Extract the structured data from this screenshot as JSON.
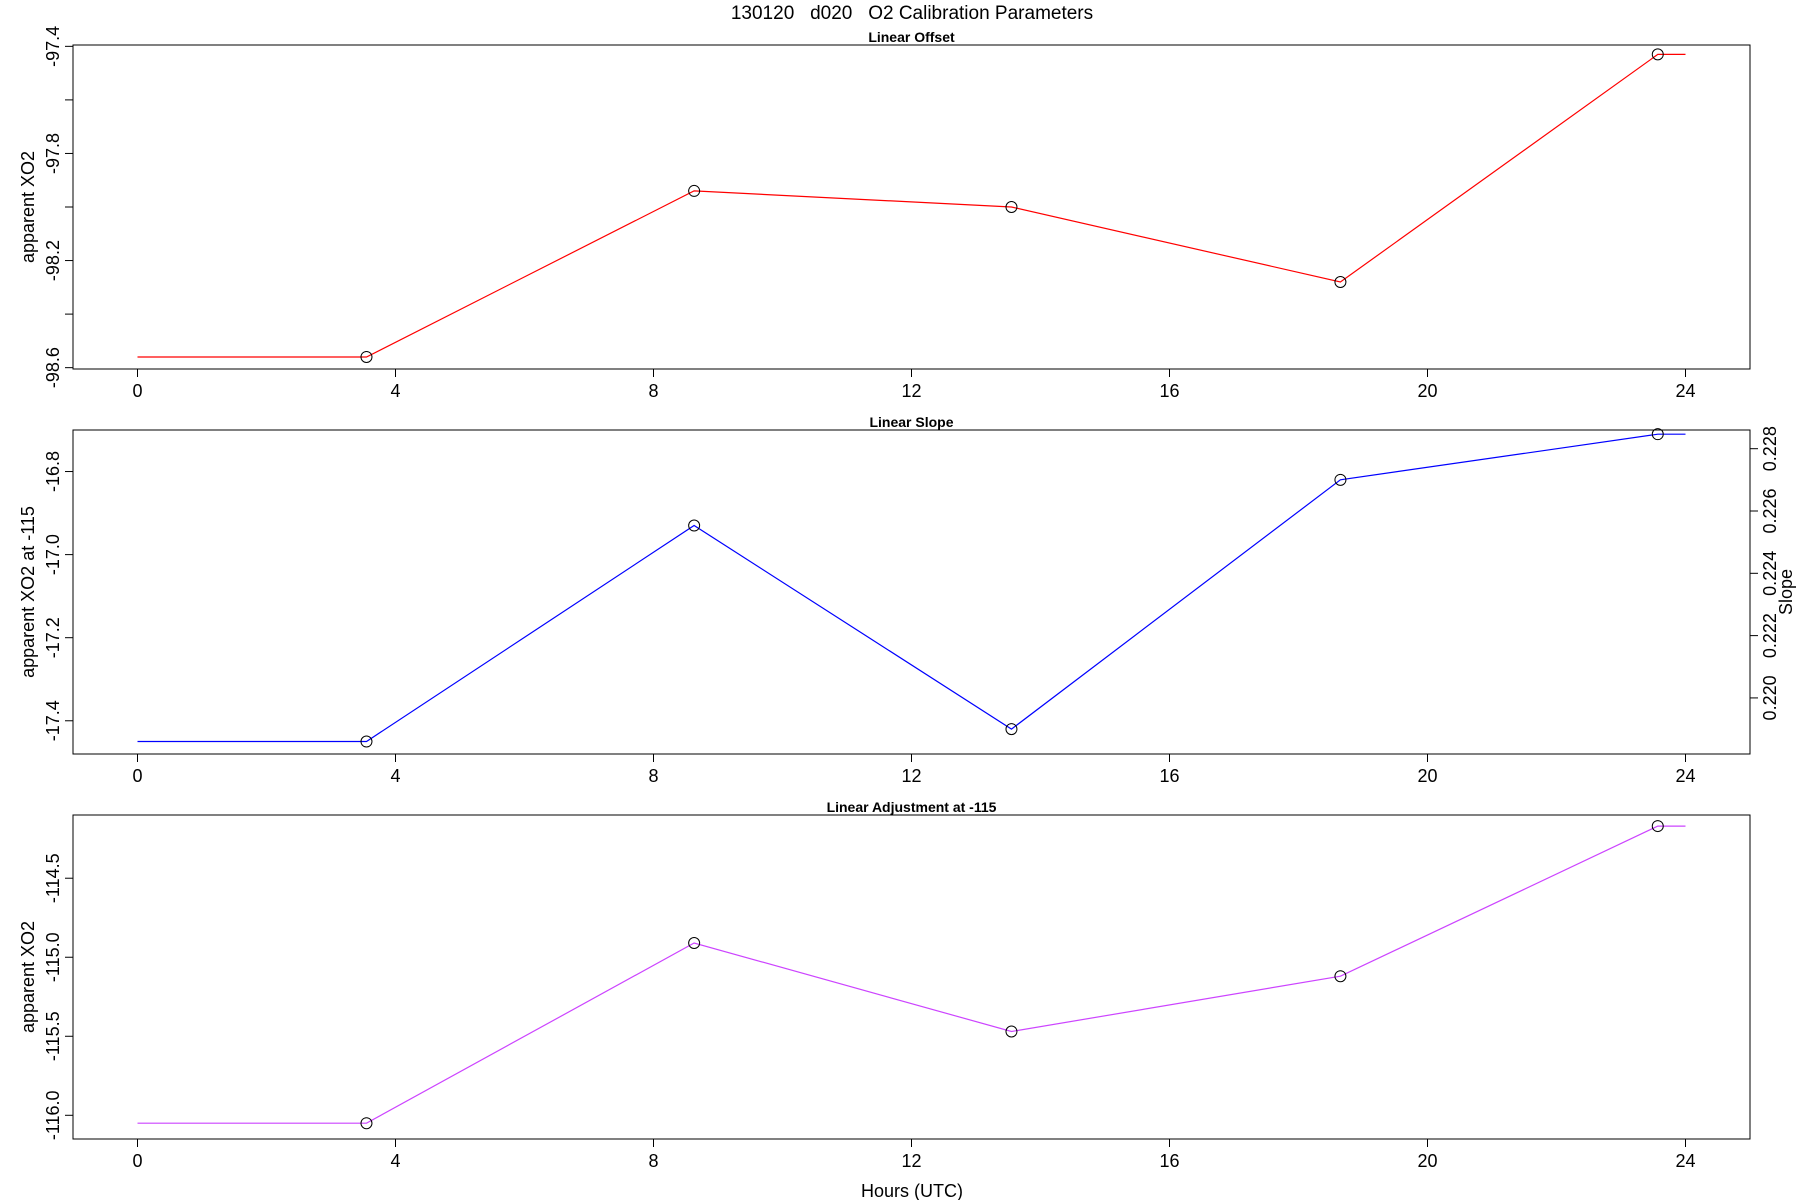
{
  "figure": {
    "title": "130120   d020   O2 Calibration Parameters",
    "xlabel": "Hours (UTC)"
  },
  "chart_data": [
    {
      "type": "line",
      "title": "Linear Offset",
      "xlabel": "",
      "ylabel": "apparent XO2",
      "xlim": [
        -1.0,
        25.0
      ],
      "ylim": [
        -98.605,
        -97.395
      ],
      "xticks": [
        "0",
        "4",
        "8",
        "12",
        "16",
        "20",
        "24"
      ],
      "yticks": [
        "-98.6",
        "-98.2",
        "-97.8",
        "-97.4"
      ],
      "color": "#ff0000",
      "x": [
        0.0,
        3.55,
        8.63,
        13.55,
        18.65,
        23.57,
        24.0
      ],
      "y": [
        -98.56,
        -98.56,
        -97.94,
        -98.0,
        -98.28,
        -97.43,
        -97.43
      ],
      "markers": [
        false,
        true,
        true,
        true,
        true,
        true,
        false
      ],
      "grid": false
    },
    {
      "type": "line",
      "title": "Linear Slope",
      "xlabel": "",
      "ylabel": "apparent XO2 at -115",
      "ylabel_right": "Slope",
      "xlim": [
        -1.0,
        25.0
      ],
      "ylim": [
        -17.48,
        -16.7
      ],
      "xticks": [
        "0",
        "4",
        "8",
        "12",
        "16",
        "20",
        "24"
      ],
      "yticks": [
        "-17.4",
        "-17.2",
        "-17.0",
        "-16.8"
      ],
      "y2ticks": [
        "0.220",
        "0.222",
        "0.224",
        "0.226",
        "0.228"
      ],
      "y2tick_values": [
        0.22,
        0.222,
        0.224,
        0.226,
        0.228
      ],
      "y2lim": [
        0.2182,
        0.2286
      ],
      "color": "#0000ff",
      "x": [
        0.0,
        3.55,
        8.63,
        13.55,
        18.65,
        23.57,
        24.0
      ],
      "y": [
        -17.45,
        -17.45,
        -16.93,
        -17.42,
        -16.82,
        -16.71,
        -16.71
      ],
      "markers": [
        false,
        true,
        true,
        true,
        true,
        true,
        false
      ],
      "grid": false
    },
    {
      "type": "line",
      "title": "Linear Adjustment at -115",
      "xlabel": "Hours (UTC)",
      "ylabel": "apparent XO2",
      "xlim": [
        -1.0,
        25.0
      ],
      "ylim": [
        -116.15,
        -114.1
      ],
      "xticks": [
        "0",
        "4",
        "8",
        "12",
        "16",
        "20",
        "24"
      ],
      "yticks": [
        "-116.0",
        "-115.5",
        "-115.0",
        "-114.5"
      ],
      "color": "#cc44ff",
      "x": [
        0.0,
        3.55,
        8.63,
        13.55,
        18.65,
        23.57,
        24.0
      ],
      "y": [
        -116.05,
        -116.05,
        -114.91,
        -115.47,
        -115.12,
        -114.17,
        -114.17
      ],
      "markers": [
        false,
        true,
        true,
        true,
        true,
        true,
        false
      ],
      "grid": false
    }
  ]
}
